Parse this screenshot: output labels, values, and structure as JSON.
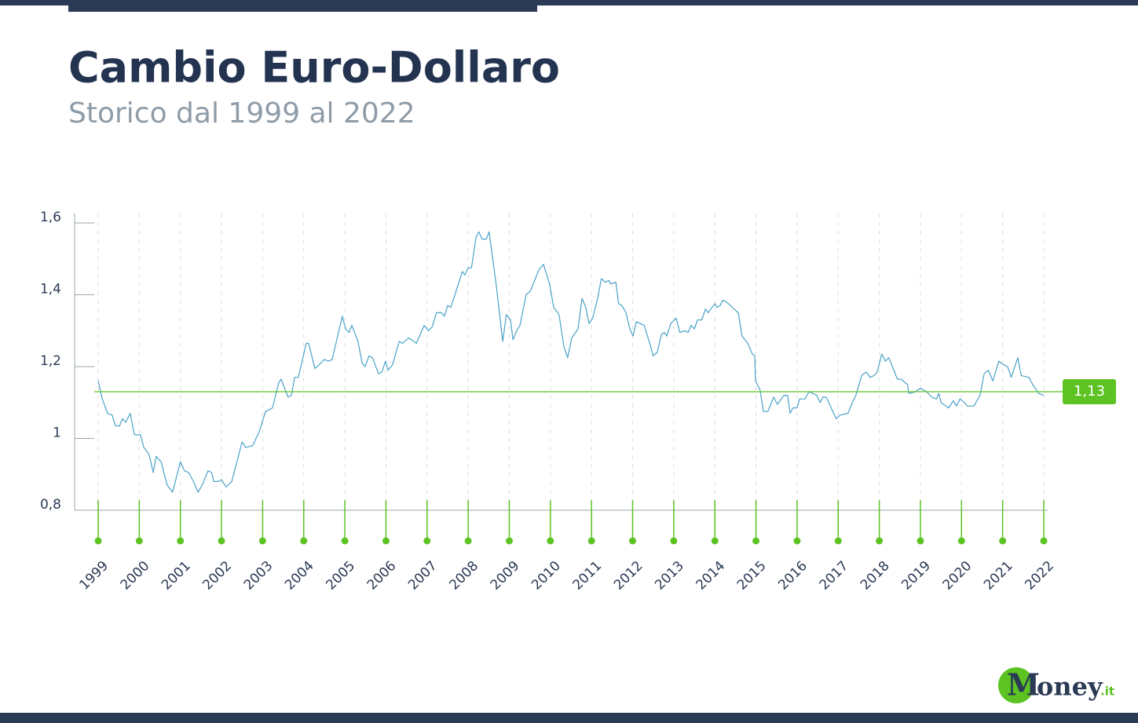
{
  "chart_data": {
    "type": "line",
    "title": "Cambio Euro-Dollaro",
    "subtitle": "Storico dal 1999 al 2022",
    "xlim": [
      1999,
      2022
    ],
    "xticks": [
      1999,
      2000,
      2001,
      2002,
      2003,
      2004,
      2005,
      2006,
      2007,
      2008,
      2009,
      2010,
      2011,
      2012,
      2013,
      2014,
      2015,
      2016,
      2017,
      2018,
      2019,
      2020,
      2021,
      2022
    ],
    "ylim": [
      0.8,
      1.6
    ],
    "yticks": [
      {
        "value": 0.8,
        "label": "0,8"
      },
      1,
      {
        "value": 1.2,
        "label": "1,2"
      },
      {
        "value": 1.4,
        "label": "1,4"
      },
      {
        "value": 1.6,
        "label": "1,6"
      }
    ],
    "grid": true,
    "series": [
      {
        "color": "#4aa3c8",
        "x": [
          1999.0,
          1999.1,
          1999.23,
          1999.34,
          1999.42,
          1999.52,
          1999.59,
          1999.67,
          1999.78,
          1999.88,
          2000.03,
          2000.11,
          2000.24,
          2000.34,
          2000.41,
          2000.53,
          2000.68,
          2000.81,
          2001.0,
          2001.1,
          2001.2,
          2001.32,
          2001.43,
          2001.55,
          2001.67,
          2001.76,
          2001.81,
          2001.92,
          2002.0,
          2002.11,
          2002.25,
          2002.5,
          2002.59,
          2002.76,
          2002.92,
          2003.07,
          2003.24,
          2003.39,
          2003.45,
          2003.62,
          2003.7,
          2003.78,
          2003.87,
          2004.06,
          2004.12,
          2004.27,
          2004.33,
          2004.5,
          2004.6,
          2004.69,
          2004.94,
          2005.02,
          2005.1,
          2005.17,
          2005.32,
          2005.42,
          2005.49,
          2005.59,
          2005.67,
          2005.82,
          2005.9,
          2005.99,
          2006.05,
          2006.16,
          2006.32,
          2006.4,
          2006.55,
          2006.74,
          2006.93,
          2007.03,
          2007.12,
          2007.23,
          2007.35,
          2007.42,
          2007.5,
          2007.58,
          2007.79,
          2007.86,
          2007.92,
          2008.0,
          2008.08,
          2008.19,
          2008.26,
          2008.34,
          2008.44,
          2008.51,
          2008.68,
          2008.84,
          2008.93,
          2009.03,
          2009.09,
          2009.18,
          2009.26,
          2009.41,
          2009.51,
          2009.72,
          2009.83,
          2009.98,
          2010.08,
          2010.21,
          2010.33,
          2010.42,
          2010.52,
          2010.67,
          2010.77,
          2010.86,
          2010.94,
          2011.03,
          2011.15,
          2011.24,
          2011.34,
          2011.42,
          2011.47,
          2011.59,
          2011.66,
          2011.74,
          2011.84,
          2011.93,
          2012.01,
          2012.09,
          2012.28,
          2012.43,
          2012.5,
          2012.6,
          2012.7,
          2012.77,
          2012.83,
          2012.93,
          2013.06,
          2013.15,
          2013.27,
          2013.35,
          2013.42,
          2013.5,
          2013.58,
          2013.68,
          2013.77,
          2013.84,
          2013.9,
          2014.0,
          2014.05,
          2014.13,
          2014.19,
          2014.28,
          2014.38,
          2014.47,
          2014.57,
          2014.66,
          2014.8,
          2014.91,
          2014.97,
          2014.99,
          2015.1,
          2015.18,
          2015.29,
          2015.43,
          2015.52,
          2015.68,
          2015.77,
          2015.83,
          2015.9,
          2016.0,
          2016.06,
          2016.19,
          2016.29,
          2016.48,
          2016.56,
          2016.63,
          2016.71,
          2016.95,
          2017.05,
          2017.24,
          2017.34,
          2017.43,
          2017.57,
          2017.68,
          2017.78,
          2017.87,
          2017.95,
          2018.06,
          2018.15,
          2018.23,
          2018.32,
          2018.44,
          2018.53,
          2018.63,
          2018.69,
          2018.72,
          2018.88,
          2019.0,
          2019.15,
          2019.28,
          2019.39,
          2019.45,
          2019.5,
          2019.69,
          2019.8,
          2019.88,
          2019.96,
          2020.07,
          2020.14,
          2020.3,
          2020.45,
          2020.55,
          2020.65,
          2020.76,
          2020.91,
          2021.02,
          2021.12,
          2021.21,
          2021.37,
          2021.45,
          2021.64,
          2021.73,
          2021.88,
          2022.0
        ],
        "values": [
          1.16,
          1.11,
          1.07,
          1.065,
          1.035,
          1.035,
          1.055,
          1.045,
          1.07,
          1.01,
          1.01,
          0.975,
          0.955,
          0.905,
          0.95,
          0.935,
          0.87,
          0.85,
          0.935,
          0.91,
          0.905,
          0.88,
          0.85,
          0.875,
          0.91,
          0.905,
          0.88,
          0.88,
          0.885,
          0.865,
          0.88,
          0.99,
          0.975,
          0.98,
          1.02,
          1.075,
          1.085,
          1.155,
          1.165,
          1.115,
          1.12,
          1.17,
          1.17,
          1.265,
          1.265,
          1.195,
          1.2,
          1.22,
          1.215,
          1.22,
          1.34,
          1.305,
          1.295,
          1.315,
          1.27,
          1.21,
          1.2,
          1.23,
          1.225,
          1.18,
          1.185,
          1.215,
          1.19,
          1.205,
          1.27,
          1.265,
          1.28,
          1.265,
          1.315,
          1.3,
          1.31,
          1.35,
          1.35,
          1.34,
          1.37,
          1.365,
          1.44,
          1.465,
          1.455,
          1.475,
          1.475,
          1.56,
          1.575,
          1.555,
          1.555,
          1.575,
          1.43,
          1.27,
          1.345,
          1.33,
          1.275,
          1.3,
          1.315,
          1.4,
          1.41,
          1.47,
          1.485,
          1.43,
          1.365,
          1.345,
          1.255,
          1.225,
          1.28,
          1.305,
          1.39,
          1.365,
          1.32,
          1.335,
          1.39,
          1.445,
          1.435,
          1.44,
          1.43,
          1.435,
          1.375,
          1.37,
          1.35,
          1.305,
          1.285,
          1.325,
          1.315,
          1.26,
          1.23,
          1.24,
          1.29,
          1.295,
          1.285,
          1.32,
          1.335,
          1.295,
          1.3,
          1.295,
          1.315,
          1.305,
          1.33,
          1.33,
          1.36,
          1.35,
          1.36,
          1.375,
          1.365,
          1.37,
          1.385,
          1.38,
          1.37,
          1.36,
          1.35,
          1.285,
          1.265,
          1.235,
          1.23,
          1.16,
          1.135,
          1.075,
          1.075,
          1.115,
          1.095,
          1.12,
          1.12,
          1.07,
          1.085,
          1.085,
          1.11,
          1.11,
          1.13,
          1.12,
          1.1,
          1.115,
          1.115,
          1.055,
          1.065,
          1.07,
          1.1,
          1.12,
          1.175,
          1.185,
          1.17,
          1.175,
          1.185,
          1.235,
          1.215,
          1.225,
          1.2,
          1.165,
          1.165,
          1.155,
          1.15,
          1.125,
          1.13,
          1.14,
          1.13,
          1.115,
          1.11,
          1.125,
          1.1,
          1.085,
          1.105,
          1.09,
          1.11,
          1.1,
          1.09,
          1.09,
          1.12,
          1.18,
          1.19,
          1.16,
          1.215,
          1.205,
          1.2,
          1.17,
          1.225,
          1.175,
          1.17,
          1.15,
          1.125,
          1.12
        ]
      }
    ],
    "reference": {
      "value": 1.13,
      "label": "1,13",
      "color": "#5cc323"
    },
    "logo": {
      "initial": "M",
      "rest": "oney",
      "suffix": ".it"
    }
  }
}
